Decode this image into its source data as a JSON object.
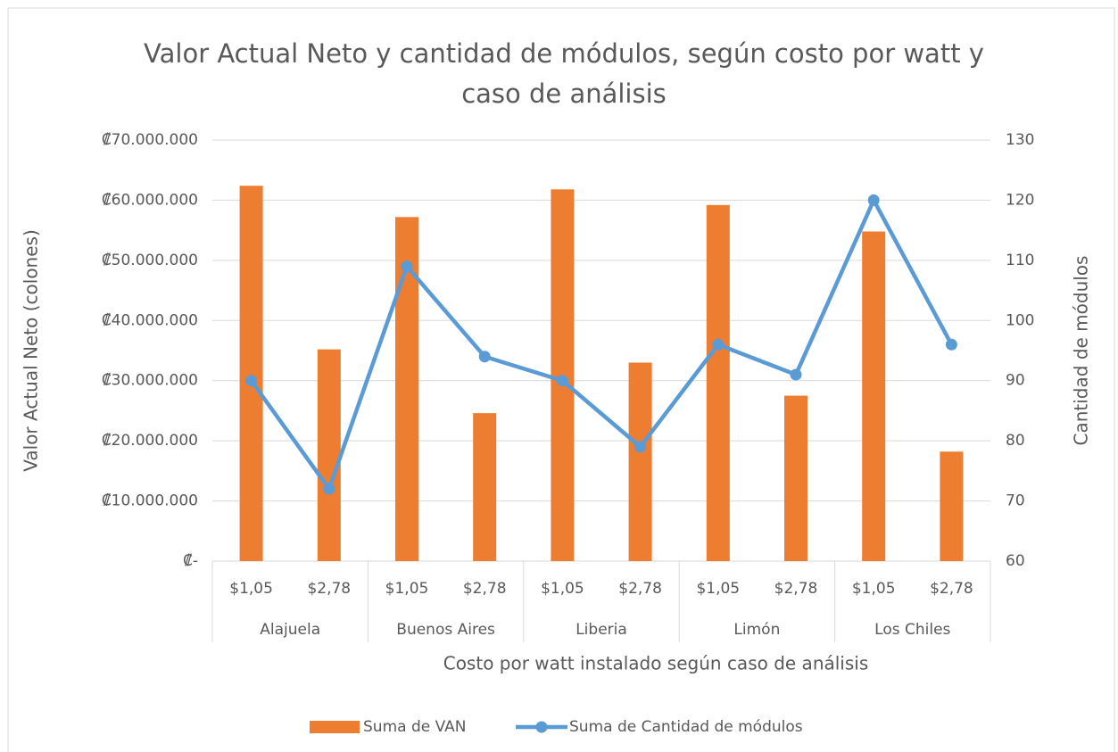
{
  "chart_data": {
    "type": "bar-line",
    "title": "Valor Actual Neto y cantidad de módulos, según costo por watt y caso de análisis",
    "x_label": "Costo por watt instalado según caso de análisis",
    "y_label": "Valor Actual Neto (colones)",
    "y2_label": "Cantidad de módulos",
    "categories": [
      "$1,05",
      "$2,78",
      "$1,05",
      "$2,78",
      "$1,05",
      "$2,78",
      "$1,05",
      "$2,78",
      "$1,05",
      "$2,78"
    ],
    "groups": [
      "Alajuela",
      "Buenos Aires",
      "Liberia",
      "Limón",
      "Los Chiles"
    ],
    "series": [
      {
        "name": "Suma de VAN",
        "color": "#ed7d31",
        "kind": "bar",
        "values": [
          62400000,
          35200000,
          57200000,
          24600000,
          61800000,
          33000000,
          59200000,
          27500000,
          54800000,
          18200000
        ]
      },
      {
        "name": "Suma de Cantidad de módulos",
        "color": "#5b9bd5",
        "kind": "line",
        "axis": "y2",
        "values": [
          90,
          72,
          109,
          94,
          90,
          79,
          96,
          91,
          120,
          96
        ]
      }
    ],
    "ylim": [
      0,
      70000000
    ],
    "yticks": [
      {
        "value": 0,
        "label": "₡-"
      },
      {
        "value": 10000000,
        "label": "₡10.000.000"
      },
      {
        "value": 20000000,
        "label": "₡20.000.000"
      },
      {
        "value": 30000000,
        "label": "₡30.000.000"
      },
      {
        "value": 40000000,
        "label": "₡40.000.000"
      },
      {
        "value": 50000000,
        "label": "₡50.000.000"
      },
      {
        "value": 60000000,
        "label": "₡60.000.000"
      },
      {
        "value": 70000000,
        "label": "₡70.000.000"
      }
    ],
    "y2lim": [
      60,
      130
    ],
    "y2ticks": [
      60,
      70,
      80,
      90,
      100,
      110,
      120,
      130
    ],
    "grid": true
  }
}
